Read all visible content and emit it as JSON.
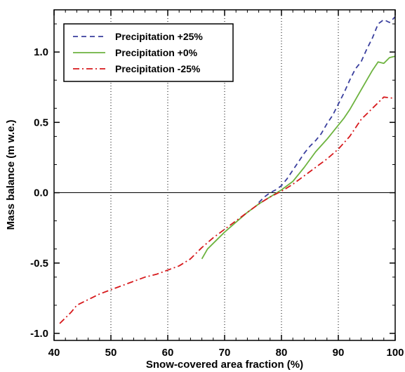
{
  "chart_data": {
    "type": "line",
    "xlabel": "Snow-covered area fraction (%)",
    "ylabel": "Mass balance (m w.e.)",
    "xlim": [
      40,
      100
    ],
    "ylim": [
      -1.05,
      1.3
    ],
    "xticks": [
      40,
      50,
      60,
      70,
      80,
      90,
      100
    ],
    "xtick_labels": [
      "40",
      "50",
      "60",
      "70",
      "80",
      "90",
      "100"
    ],
    "yticks": [
      -1.0,
      -0.5,
      0.0,
      0.5,
      1.0
    ],
    "ytick_labels": [
      "-1.0",
      "-0.5",
      "0.0",
      "0.5",
      "1.0"
    ],
    "vertical_gridlines_dotted_at": [
      50,
      60,
      70,
      80,
      90
    ],
    "horizontal_line_at": 0.0,
    "legend_position": "top-left",
    "series": [
      {
        "name": "Precipitation +25%",
        "color": "#3a3f9e",
        "style": "dashed",
        "x": [
          76,
          77,
          78,
          79,
          80,
          81,
          82,
          83,
          84,
          85,
          86,
          87,
          88,
          89,
          90,
          91,
          92,
          93,
          94,
          95,
          96,
          97,
          98,
          99,
          100
        ],
        "y": [
          -0.07,
          -0.03,
          0.0,
          0.02,
          0.05,
          0.1,
          0.16,
          0.22,
          0.28,
          0.33,
          0.37,
          0.42,
          0.49,
          0.55,
          0.63,
          0.71,
          0.8,
          0.88,
          0.93,
          1.02,
          1.1,
          1.2,
          1.23,
          1.21,
          1.25
        ]
      },
      {
        "name": "Precipitation +0%",
        "color": "#6db33f",
        "style": "solid",
        "x": [
          66,
          67,
          68,
          70,
          72,
          74,
          76,
          78,
          80,
          82,
          84,
          86,
          88,
          89,
          90,
          91,
          92,
          93,
          94,
          95,
          96,
          97,
          98,
          99,
          100
        ],
        "y": [
          -0.47,
          -0.4,
          -0.36,
          -0.28,
          -0.21,
          -0.14,
          -0.08,
          -0.03,
          0.02,
          0.08,
          0.18,
          0.29,
          0.38,
          0.43,
          0.48,
          0.53,
          0.59,
          0.66,
          0.73,
          0.8,
          0.87,
          0.93,
          0.92,
          0.96,
          0.97
        ]
      },
      {
        "name": "Precipitation -25%",
        "color": "#d7191c",
        "style": "dashdot",
        "x": [
          41,
          42,
          43,
          44,
          46,
          48,
          50,
          52,
          54,
          56,
          58,
          60,
          62,
          64,
          65,
          66,
          68,
          70,
          72,
          74,
          76,
          78,
          80,
          82,
          84,
          86,
          88,
          90,
          92,
          94,
          96,
          98,
          100
        ],
        "y": [
          -0.93,
          -0.89,
          -0.85,
          -0.8,
          -0.76,
          -0.72,
          -0.69,
          -0.66,
          -0.63,
          -0.6,
          -0.58,
          -0.55,
          -0.52,
          -0.47,
          -0.43,
          -0.39,
          -0.32,
          -0.26,
          -0.2,
          -0.14,
          -0.08,
          -0.03,
          0.01,
          0.06,
          0.12,
          0.18,
          0.24,
          0.31,
          0.4,
          0.52,
          0.6,
          0.68,
          0.67
        ]
      }
    ]
  }
}
